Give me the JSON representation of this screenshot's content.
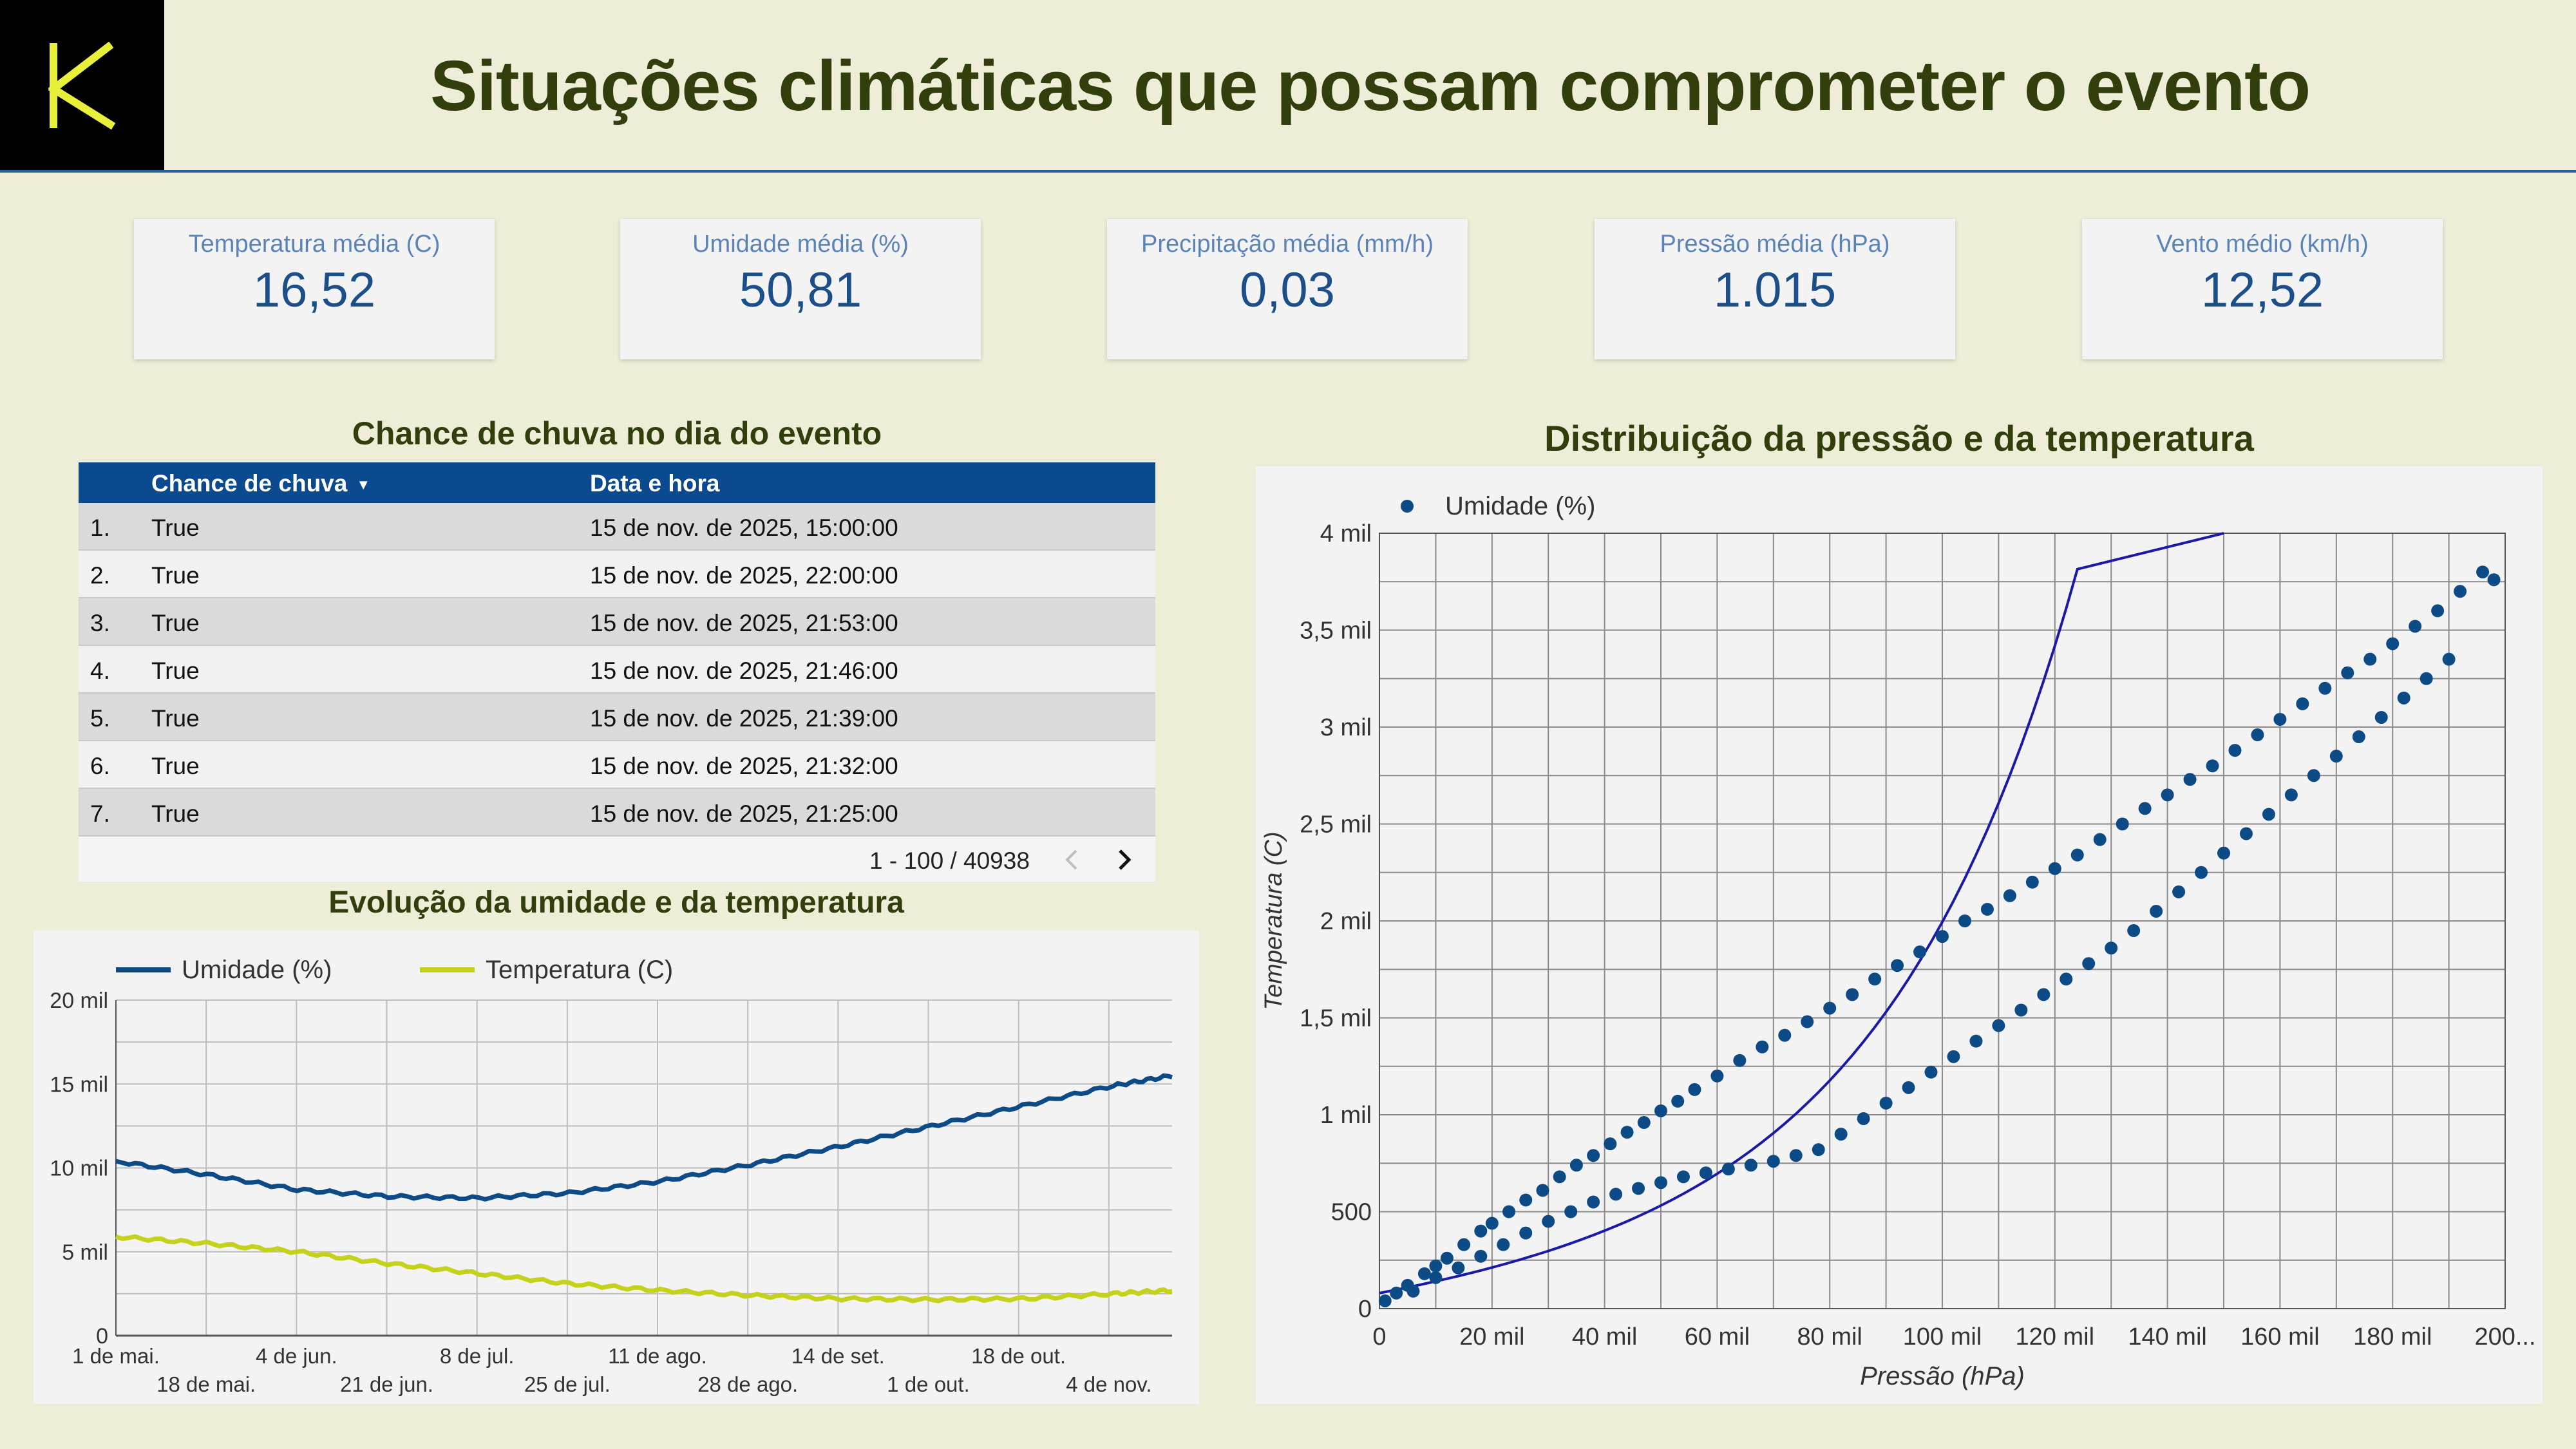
{
  "header": {
    "logo_letter": "K",
    "title": "Situações climáticas que possam comprometer o evento"
  },
  "colors": {
    "background": "#eeeed8",
    "title": "#323e0c",
    "navy": "#0b4a8f",
    "humidity": "#0d4b86",
    "temperature": "#c5d21c",
    "logo_letter": "#e8f03a"
  },
  "kpis": [
    {
      "label": "Temperatura média (C)",
      "value": "16,52"
    },
    {
      "label": "Umidade média (%)",
      "value": "50,81"
    },
    {
      "label": "Precipitação média (mm/h)",
      "value": "0,03"
    },
    {
      "label": "Pressão média (hPa)",
      "value": "1.015"
    },
    {
      "label": "Vento médio (km/h)",
      "value": "12,52"
    }
  ],
  "rain_table": {
    "title": "Chance de chuva no dia do evento",
    "columns": [
      "Chance de chuva",
      "Data e hora"
    ],
    "sort_icon": "caret-down-icon",
    "rows": [
      {
        "idx": "1.",
        "chance": "True",
        "datetime": "15 de nov. de 2025, 15:00:00"
      },
      {
        "idx": "2.",
        "chance": "True",
        "datetime": "15 de nov. de 2025, 22:00:00"
      },
      {
        "idx": "3.",
        "chance": "True",
        "datetime": "15 de nov. de 2025, 21:53:00"
      },
      {
        "idx": "4.",
        "chance": "True",
        "datetime": "15 de nov. de 2025, 21:46:00"
      },
      {
        "idx": "5.",
        "chance": "True",
        "datetime": "15 de nov. de 2025, 21:39:00"
      },
      {
        "idx": "6.",
        "chance": "True",
        "datetime": "15 de nov. de 2025, 21:32:00"
      },
      {
        "idx": "7.",
        "chance": "True",
        "datetime": "15 de nov. de 2025, 21:25:00"
      }
    ],
    "pagination": "1 - 100 / 40938"
  },
  "chart_data": [
    {
      "type": "line",
      "title": "Evolução da umidade e da temperatura",
      "xlabel": "",
      "ylabel": "",
      "ylim": [
        0,
        20000
      ],
      "y_ticks": [
        "0",
        "5 mil",
        "10 mil",
        "15 mil",
        "20 mil"
      ],
      "x_ticks_top": [
        "1 de mai.",
        "4 de jun.",
        "8 de jul.",
        "11 de ago.",
        "14 de set.",
        "18 de out."
      ],
      "x_ticks_bottom": [
        "18 de mai.",
        "21 de jun.",
        "25 de jul.",
        "28 de ago.",
        "1 de out.",
        "4 de nov."
      ],
      "x": [
        "2025-05-01",
        "2025-05-18",
        "2025-06-04",
        "2025-06-21",
        "2025-07-08",
        "2025-07-25",
        "2025-08-11",
        "2025-08-28",
        "2025-09-14",
        "2025-10-01",
        "2025-10-18",
        "2025-11-04",
        "2025-11-15"
      ],
      "legend": "top-left",
      "grid": true,
      "series": [
        {
          "name": "Umidade (%)",
          "color": "#0d4b86",
          "values": [
            10400,
            9600,
            8700,
            8300,
            8200,
            8500,
            9200,
            10200,
            11300,
            12500,
            13700,
            14900,
            15500
          ]
        },
        {
          "name": "Temperatura (C)",
          "color": "#c5d21c",
          "values": [
            5900,
            5500,
            5000,
            4300,
            3700,
            3100,
            2700,
            2400,
            2200,
            2150,
            2200,
            2500,
            2700
          ]
        }
      ]
    },
    {
      "type": "scatter",
      "title": "Distribuição da pressão e da temperatura",
      "xlabel": "Pressão (hPa)",
      "ylabel": "Temperatura (C)",
      "xlim": [
        0,
        200000
      ],
      "ylim": [
        0,
        4000
      ],
      "x_ticks": [
        "0",
        "20 mil",
        "40 mil",
        "60 mil",
        "80 mil",
        "100 mil",
        "120 mil",
        "140 mil",
        "160 mil",
        "180 mil",
        "200..."
      ],
      "y_ticks": [
        "0",
        "500",
        "1 mil",
        "1,5 mil",
        "2 mil",
        "2,5 mil",
        "3 mil",
        "3,5 mil",
        "4 mil"
      ],
      "legend": "top-left",
      "grid": true,
      "series": [
        {
          "name": "Umidade (%)",
          "color": "#0d4b86",
          "points": [
            [
              1000,
              40
            ],
            [
              3000,
              80
            ],
            [
              5000,
              120
            ],
            [
              8000,
              180
            ],
            [
              10000,
              220
            ],
            [
              12000,
              260
            ],
            [
              15000,
              330
            ],
            [
              18000,
              400
            ],
            [
              20000,
              440
            ],
            [
              23000,
              500
            ],
            [
              26000,
              560
            ],
            [
              29000,
              610
            ],
            [
              32000,
              680
            ],
            [
              35000,
              740
            ],
            [
              38000,
              790
            ],
            [
              41000,
              850
            ],
            [
              44000,
              910
            ],
            [
              47000,
              960
            ],
            [
              50000,
              1020
            ],
            [
              53000,
              1070
            ],
            [
              56000,
              1130
            ],
            [
              60000,
              1200
            ],
            [
              64000,
              1280
            ],
            [
              68000,
              1350
            ],
            [
              72000,
              1410
            ],
            [
              76000,
              1480
            ],
            [
              80000,
              1550
            ],
            [
              84000,
              1620
            ],
            [
              88000,
              1700
            ],
            [
              92000,
              1770
            ],
            [
              96000,
              1840
            ],
            [
              100000,
              1920
            ],
            [
              104000,
              2000
            ],
            [
              108000,
              2060
            ],
            [
              112000,
              2130
            ],
            [
              116000,
              2200
            ],
            [
              120000,
              2270
            ],
            [
              124000,
              2340
            ],
            [
              128000,
              2420
            ],
            [
              132000,
              2500
            ],
            [
              136000,
              2580
            ],
            [
              140000,
              2650
            ],
            [
              144000,
              2730
            ],
            [
              148000,
              2800
            ],
            [
              152000,
              2880
            ],
            [
              156000,
              2960
            ],
            [
              160000,
              3040
            ],
            [
              164000,
              3120
            ],
            [
              168000,
              3200
            ],
            [
              172000,
              3280
            ],
            [
              176000,
              3350
            ],
            [
              180000,
              3430
            ],
            [
              184000,
              3520
            ],
            [
              188000,
              3600
            ],
            [
              192000,
              3700
            ],
            [
              196000,
              3800
            ],
            [
              198000,
              3760
            ],
            [
              6000,
              90
            ],
            [
              10000,
              160
            ],
            [
              14000,
              210
            ],
            [
              18000,
              270
            ],
            [
              22000,
              330
            ],
            [
              26000,
              390
            ],
            [
              30000,
              450
            ],
            [
              34000,
              500
            ],
            [
              38000,
              550
            ],
            [
              42000,
              590
            ],
            [
              46000,
              620
            ],
            [
              50000,
              650
            ],
            [
              54000,
              680
            ],
            [
              58000,
              700
            ],
            [
              62000,
              720
            ],
            [
              66000,
              740
            ],
            [
              70000,
              760
            ],
            [
              74000,
              790
            ],
            [
              78000,
              820
            ],
            [
              82000,
              900
            ],
            [
              86000,
              980
            ],
            [
              90000,
              1060
            ],
            [
              94000,
              1140
            ],
            [
              98000,
              1220
            ],
            [
              102000,
              1300
            ],
            [
              106000,
              1380
            ],
            [
              110000,
              1460
            ],
            [
              114000,
              1540
            ],
            [
              118000,
              1620
            ],
            [
              122000,
              1700
            ],
            [
              126000,
              1780
            ],
            [
              130000,
              1860
            ],
            [
              134000,
              1950
            ],
            [
              138000,
              2050
            ],
            [
              142000,
              2150
            ],
            [
              146000,
              2250
            ],
            [
              150000,
              2350
            ],
            [
              154000,
              2450
            ],
            [
              158000,
              2550
            ],
            [
              162000,
              2650
            ],
            [
              166000,
              2750
            ],
            [
              170000,
              2850
            ],
            [
              174000,
              2950
            ],
            [
              178000,
              3050
            ],
            [
              182000,
              3150
            ],
            [
              186000,
              3250
            ],
            [
              190000,
              3350
            ]
          ]
        }
      ],
      "trendline": {
        "type": "exponential",
        "color": "#1a1aa8"
      }
    }
  ]
}
